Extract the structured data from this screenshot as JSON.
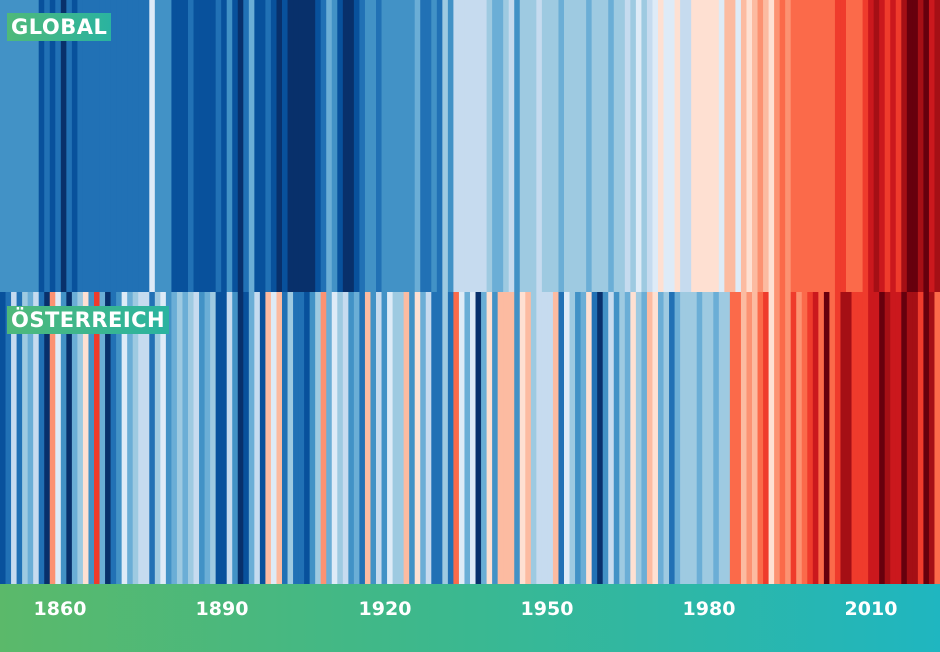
{
  "chart_data": {
    "type": "heatmap",
    "title": "",
    "xlabel": "",
    "ylabel": "",
    "xlim": [
      1850,
      2019
    ],
    "x_ticks": [
      1860,
      1890,
      1920,
      1950,
      1980,
      2010
    ],
    "palette": [
      "#08306b",
      "#08519c",
      "#2171b5",
      "#4292c6",
      "#6baed6",
      "#9ecae1",
      "#c6dbef",
      "#deebf7",
      "#fee0d2",
      "#fcbba1",
      "#fc9272",
      "#fb6a4a",
      "#ef3b2c",
      "#cb181d",
      "#a50f15",
      "#67000d"
    ],
    "series": [
      {
        "name": "GLOBAL",
        "years_start": 1850,
        "color_levels": [
          3,
          3,
          3,
          3,
          3,
          3,
          3,
          1,
          2,
          1,
          2,
          0,
          2,
          1,
          2,
          2,
          2,
          2,
          2,
          2,
          2,
          2,
          2,
          2,
          2,
          2,
          2,
          7,
          3,
          3,
          3,
          1,
          1,
          1,
          2,
          1,
          1,
          1,
          1,
          2,
          1,
          3,
          1,
          0,
          2,
          4,
          1,
          1,
          2,
          1,
          0,
          1,
          0,
          0,
          0,
          0,
          0,
          1,
          2,
          4,
          3,
          1,
          0,
          0,
          1,
          2,
          3,
          3,
          2,
          3,
          3,
          3,
          3,
          3,
          3,
          4,
          2,
          2,
          3,
          2,
          5,
          3,
          6,
          6,
          6,
          6,
          6,
          6,
          5,
          4,
          4,
          5,
          6,
          3,
          5,
          5,
          5,
          6,
          5,
          5,
          5,
          4,
          5,
          5,
          5,
          5,
          4,
          5,
          5,
          5,
          4,
          5,
          5,
          6,
          5,
          7,
          5,
          6,
          7,
          8,
          7,
          7,
          8,
          6,
          6,
          8,
          8,
          8,
          8,
          8,
          7,
          9,
          9,
          7,
          9,
          8,
          9,
          10,
          9,
          8,
          10,
          11,
          10,
          11,
          11,
          11,
          11,
          11,
          11,
          11,
          11,
          12,
          12,
          11,
          11,
          11,
          12,
          13,
          14,
          13,
          12,
          13,
          12,
          14,
          15,
          15,
          14,
          15,
          13,
          14
        ]
      },
      {
        "name": "ÖSTERREICH",
        "years_start": 1850,
        "color_levels": [
          1,
          2,
          6,
          2,
          5,
          4,
          6,
          2,
          0,
          10,
          7,
          3,
          0,
          4,
          5,
          8,
          3,
          12,
          4,
          0,
          2,
          3,
          7,
          4,
          5,
          6,
          6,
          2,
          5,
          7,
          3,
          4,
          5,
          4,
          5,
          6,
          3,
          4,
          5,
          1,
          1,
          6,
          3,
          0,
          1,
          4,
          6,
          1,
          9,
          7,
          9,
          2,
          5,
          2,
          2,
          1,
          3,
          5,
          10,
          4,
          7,
          5,
          6,
          3,
          4,
          2,
          9,
          3,
          6,
          3,
          7,
          5,
          5,
          9,
          3,
          8,
          4,
          6,
          2,
          2,
          5,
          2,
          11,
          7,
          4,
          7,
          0,
          4,
          8,
          3,
          9,
          9,
          9,
          3,
          8,
          9,
          5,
          6,
          6,
          6,
          9,
          2,
          7,
          5,
          3,
          4,
          8,
          2,
          0,
          3,
          6,
          3,
          5,
          4,
          8,
          5,
          4,
          9,
          8,
          4,
          5,
          2,
          4,
          5,
          5,
          5,
          4,
          5,
          5,
          4,
          5,
          5,
          11,
          11,
          9,
          10,
          9,
          11,
          12,
          8,
          10,
          11,
          10,
          12,
          10,
          11,
          12,
          13,
          11,
          15,
          11,
          12,
          14,
          14,
          12,
          12,
          12,
          13,
          13,
          15,
          14,
          13,
          13,
          15,
          14,
          14,
          12,
          15,
          14,
          11
        ]
      }
    ]
  },
  "panels": {
    "global_label": "GLOBAL",
    "austria_label": "ÖSTERREICH"
  },
  "axis": {
    "ticks": [
      "1860",
      "1890",
      "1920",
      "1950",
      "1980",
      "2010"
    ]
  }
}
